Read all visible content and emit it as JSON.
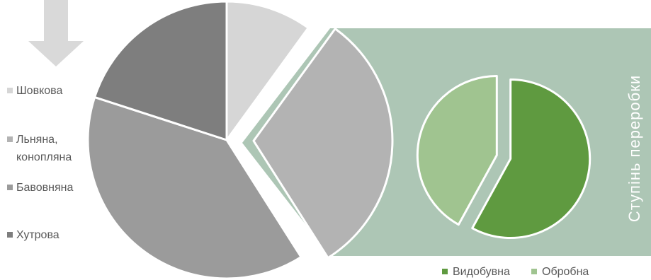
{
  "colors": {
    "background": "#ffffff",
    "arrow": "#d9d9d9",
    "green_panel": "#adc6b5",
    "green_panel_stroke": "#ffffff",
    "slice_outline": "#ffffff",
    "legend_text": "#595959"
  },
  "chart_data": [
    {
      "type": "pie",
      "title": "",
      "legend_placement": "left",
      "slices": [
        {
          "label": "Шовкова",
          "value": 10,
          "color": "#d6d6d6"
        },
        {
          "label": "Льняна, конопляна",
          "value": 31,
          "color": "#b3b3b3",
          "exploded": true
        },
        {
          "label": "Бавовняна",
          "value": 39,
          "color": "#9b9b9b"
        },
        {
          "label": "Хутрова",
          "value": 20,
          "color": "#7e7e7e"
        }
      ],
      "legend": [
        {
          "lines": [
            "Шовкова"
          ],
          "color": "#d6d6d6"
        },
        {
          "lines": [
            "Льняна,",
            "конопляна"
          ],
          "color": "#b3b3b3"
        },
        {
          "lines": [
            "Бавовняна"
          ],
          "color": "#9b9b9b"
        },
        {
          "lines": [
            "Хутрова"
          ],
          "color": "#7e7e7e"
        }
      ]
    },
    {
      "type": "pie",
      "title": "Ступінь переробки",
      "legend_placement": "bottom",
      "slices": [
        {
          "label": "Видобувна",
          "value": 58,
          "color": "#5f9a40"
        },
        {
          "label": "Обробна",
          "value": 42,
          "color": "#a0c490"
        }
      ],
      "legend": [
        {
          "lines": [
            "Видобувна"
          ],
          "color": "#5f9a40"
        },
        {
          "lines": [
            "Обробна"
          ],
          "color": "#a0c490"
        }
      ]
    }
  ]
}
